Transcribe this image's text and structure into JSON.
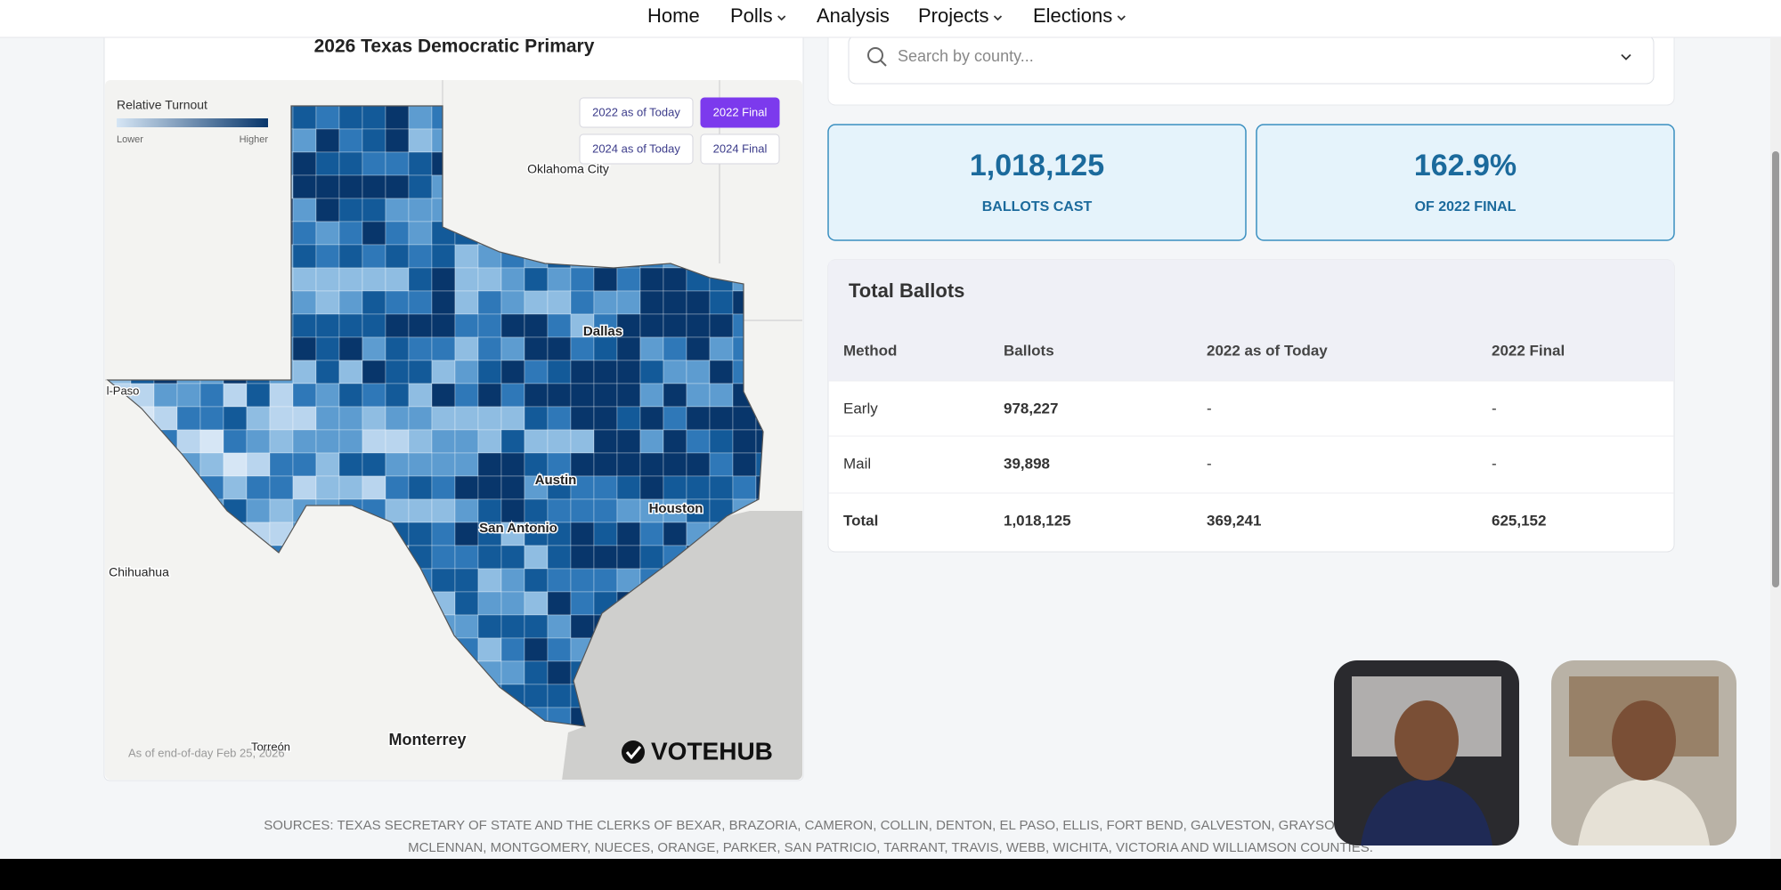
{
  "nav": {
    "items": [
      "Home",
      "Polls",
      "Analysis",
      "Projects",
      "Elections"
    ],
    "dropdowns": [
      false,
      true,
      false,
      true,
      true
    ]
  },
  "map_card": {
    "title": "2026 Texas Democratic Primary",
    "legend": {
      "title": "Relative Turnout",
      "low": "Lower",
      "high": "Higher"
    },
    "buttons": [
      {
        "label": "2022 as of Today",
        "active": false
      },
      {
        "label": "2022 Final",
        "active": true
      },
      {
        "label": "2024 as of Today",
        "active": false
      },
      {
        "label": "2024 Final",
        "active": false
      }
    ],
    "places": [
      "Oklahoma City",
      "Dallas",
      "l-Paso",
      "Austin",
      "Houston",
      "San Antonio",
      "Chihuahua",
      "Monterrey",
      "Torreón"
    ],
    "note": "As of end-of-day Feb 25, 2026",
    "logo": "VOTEHUB"
  },
  "search": {
    "placeholder": "Search by county..."
  },
  "stats": [
    {
      "value": "1,018,125",
      "label": "BALLOTS CAST"
    },
    {
      "value": "162.9%",
      "label": "OF 2022 FINAL"
    }
  ],
  "table": {
    "title": "Total Ballots",
    "columns": [
      "Method",
      "Ballots",
      "2022 as of Today",
      "2022 Final"
    ],
    "rows": [
      [
        "Early",
        "978,227",
        "-",
        "-"
      ],
      [
        "Mail",
        "39,898",
        "-",
        "-"
      ],
      [
        "Total",
        "1,018,125",
        "369,241",
        "625,152"
      ]
    ]
  },
  "sources": [
    "SOURCES: TEXAS SECRETARY OF STATE AND THE CLERKS OF BEXAR, BRAZORIA, CAMERON, COLLIN, DENTON, EL PASO, ELLIS, FORT BEND, GALVESTON, GRAYSON, GREGG, GUADALUPE, HA",
    "MCLENNAN, MONTGOMERY, NUECES, ORANGE, PARKER, SAN PATRICIO, TARRANT, TRAVIS, WEBB, WICHITA, VICTORIA AND WILLIAMSON COUNTIES."
  ]
}
